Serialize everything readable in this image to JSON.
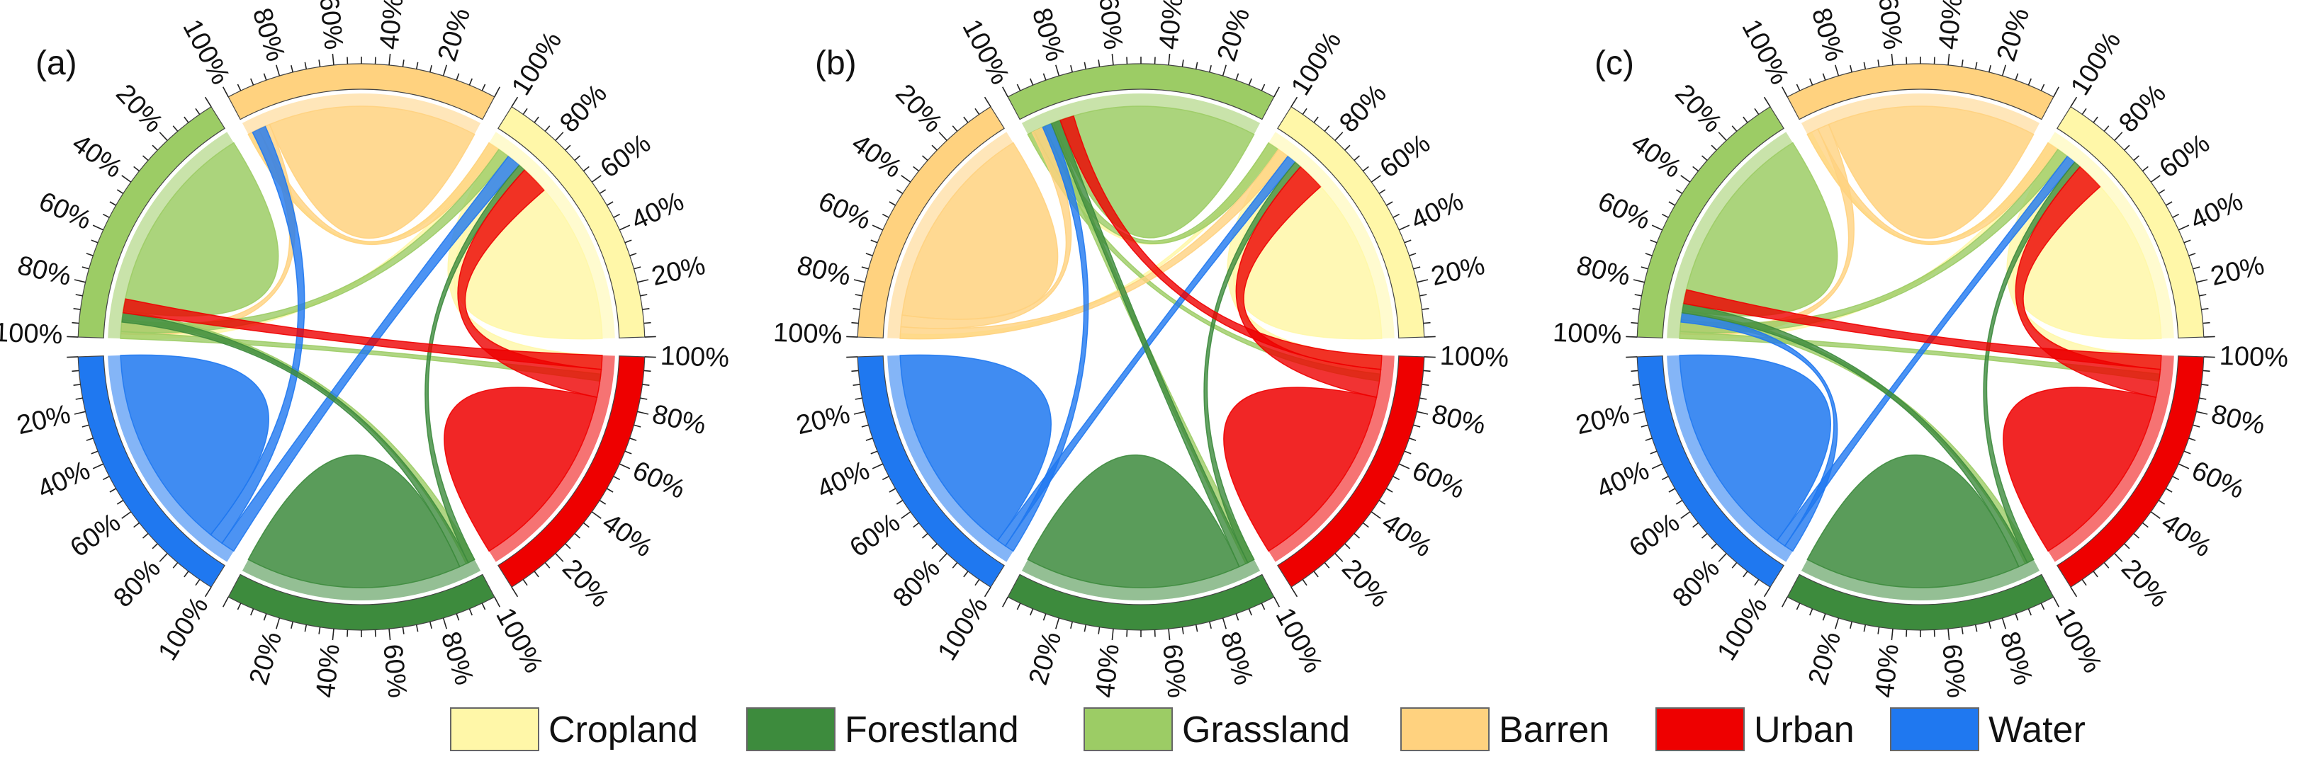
{
  "colors": {
    "Cropland": "#fff7a8",
    "Forestland": "#3d8b3d",
    "Grassland": "#9ccc65",
    "Barren": "#ffd27f",
    "Urban": "#ee0000",
    "Water": "#1f78f0"
  },
  "legend": [
    "Cropland",
    "Forestland",
    "Grassland",
    "Barren",
    "Urban",
    "Water"
  ],
  "chart_data": [
    {
      "type": "chord",
      "panel_label": "(a)",
      "sector_order": [
        "Cropland",
        "Barren",
        "Grassland",
        "Water",
        "Forestland",
        "Urban"
      ],
      "tick_labels": [
        "20%",
        "40%",
        "60%",
        "80%",
        "100%"
      ],
      "flows": [
        {
          "from": "Cropland",
          "to": "Cropland",
          "value": 0.88
        },
        {
          "from": "Cropland",
          "to": "Urban",
          "value": 0.08
        },
        {
          "from": "Cropland",
          "to": "Grassland",
          "value": 0.02
        },
        {
          "from": "Cropland",
          "to": "Barren",
          "value": 0.02
        },
        {
          "from": "Barren",
          "to": "Barren",
          "value": 0.9
        },
        {
          "from": "Barren",
          "to": "Grassland",
          "value": 0.05
        },
        {
          "from": "Barren",
          "to": "Cropland",
          "value": 0.05
        },
        {
          "from": "Grassland",
          "to": "Grassland",
          "value": 0.88
        },
        {
          "from": "Grassland",
          "to": "Forestland",
          "value": 0.04
        },
        {
          "from": "Grassland",
          "to": "Cropland",
          "value": 0.05
        },
        {
          "from": "Grassland",
          "to": "Urban",
          "value": 0.03
        },
        {
          "from": "Water",
          "to": "Water",
          "value": 0.88
        },
        {
          "from": "Water",
          "to": "Barren",
          "value": 0.06
        },
        {
          "from": "Water",
          "to": "Cropland",
          "value": 0.06
        },
        {
          "from": "Forestland",
          "to": "Forestland",
          "value": 0.93
        },
        {
          "from": "Forestland",
          "to": "Grassland",
          "value": 0.04
        },
        {
          "from": "Forestland",
          "to": "Cropland",
          "value": 0.03
        },
        {
          "from": "Urban",
          "to": "Urban",
          "value": 0.82
        },
        {
          "from": "Urban",
          "to": "Cropland",
          "value": 0.12
        },
        {
          "from": "Urban",
          "to": "Grassland",
          "value": 0.06
        }
      ]
    },
    {
      "type": "chord",
      "panel_label": "(b)",
      "sector_order": [
        "Cropland",
        "Grassland",
        "Barren",
        "Water",
        "Forestland",
        "Urban"
      ],
      "tick_labels": [
        "20%",
        "40%",
        "60%",
        "80%",
        "100%"
      ],
      "flows": [
        {
          "from": "Cropland",
          "to": "Cropland",
          "value": 0.88
        },
        {
          "from": "Cropland",
          "to": "Urban",
          "value": 0.08
        },
        {
          "from": "Cropland",
          "to": "Grassland",
          "value": 0.02
        },
        {
          "from": "Cropland",
          "to": "Barren",
          "value": 0.02
        },
        {
          "from": "Grassland",
          "to": "Grassland",
          "value": 0.88
        },
        {
          "from": "Grassland",
          "to": "Forestland",
          "value": 0.04
        },
        {
          "from": "Grassland",
          "to": "Cropland",
          "value": 0.05
        },
        {
          "from": "Grassland",
          "to": "Urban",
          "value": 0.03
        },
        {
          "from": "Barren",
          "to": "Barren",
          "value": 0.9
        },
        {
          "from": "Barren",
          "to": "Grassland",
          "value": 0.05
        },
        {
          "from": "Barren",
          "to": "Cropland",
          "value": 0.05
        },
        {
          "from": "Water",
          "to": "Water",
          "value": 0.92
        },
        {
          "from": "Water",
          "to": "Cropland",
          "value": 0.04
        },
        {
          "from": "Water",
          "to": "Grassland",
          "value": 0.04
        },
        {
          "from": "Forestland",
          "to": "Forestland",
          "value": 0.93
        },
        {
          "from": "Forestland",
          "to": "Grassland",
          "value": 0.04
        },
        {
          "from": "Forestland",
          "to": "Cropland",
          "value": 0.03
        },
        {
          "from": "Urban",
          "to": "Urban",
          "value": 0.82
        },
        {
          "from": "Urban",
          "to": "Cropland",
          "value": 0.12
        },
        {
          "from": "Urban",
          "to": "Grassland",
          "value": 0.06
        }
      ]
    },
    {
      "type": "chord",
      "panel_label": "(c)",
      "sector_order": [
        "Cropland",
        "Barren",
        "Grassland",
        "Water",
        "Forestland",
        "Urban"
      ],
      "tick_labels": [
        "20%",
        "40%",
        "60%",
        "80%",
        "100%"
      ],
      "flows": [
        {
          "from": "Cropland",
          "to": "Cropland",
          "value": 0.88
        },
        {
          "from": "Cropland",
          "to": "Urban",
          "value": 0.08
        },
        {
          "from": "Cropland",
          "to": "Grassland",
          "value": 0.02
        },
        {
          "from": "Cropland",
          "to": "Barren",
          "value": 0.02
        },
        {
          "from": "Barren",
          "to": "Barren",
          "value": 0.9
        },
        {
          "from": "Barren",
          "to": "Grassland",
          "value": 0.05
        },
        {
          "from": "Barren",
          "to": "Cropland",
          "value": 0.05
        },
        {
          "from": "Grassland",
          "to": "Grassland",
          "value": 0.88
        },
        {
          "from": "Grassland",
          "to": "Forestland",
          "value": 0.04
        },
        {
          "from": "Grassland",
          "to": "Cropland",
          "value": 0.05
        },
        {
          "from": "Grassland",
          "to": "Urban",
          "value": 0.03
        },
        {
          "from": "Water",
          "to": "Water",
          "value": 0.92
        },
        {
          "from": "Water",
          "to": "Cropland",
          "value": 0.04
        },
        {
          "from": "Water",
          "to": "Grassland",
          "value": 0.04
        },
        {
          "from": "Forestland",
          "to": "Forestland",
          "value": 0.93
        },
        {
          "from": "Forestland",
          "to": "Grassland",
          "value": 0.04
        },
        {
          "from": "Forestland",
          "to": "Cropland",
          "value": 0.03
        },
        {
          "from": "Urban",
          "to": "Urban",
          "value": 0.82
        },
        {
          "from": "Urban",
          "to": "Cropland",
          "value": 0.12
        },
        {
          "from": "Urban",
          "to": "Grassland",
          "value": 0.06
        }
      ]
    }
  ]
}
